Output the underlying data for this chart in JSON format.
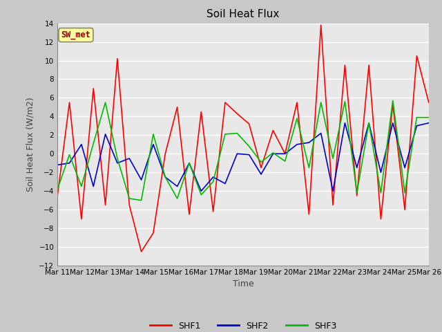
{
  "title": "Soil Heat Flux",
  "ylabel": "Soil Heat Flux (W/m2)",
  "xlabel": "Time",
  "ylim": [
    -12,
    14
  ],
  "yticks": [
    -12,
    -10,
    -8,
    -6,
    -4,
    -2,
    0,
    2,
    4,
    6,
    8,
    10,
    12,
    14
  ],
  "annotation_text": "SW_met",
  "annotation_color": "#8B0000",
  "annotation_bg": "#FFFFA0",
  "fig_bg_color": "#C8C8C8",
  "plot_bg": "#E8E8E8",
  "grid_color": "white",
  "x_labels": [
    "Mar 11",
    "Mar 12",
    "Mar 13",
    "Mar 14",
    "Mar 15",
    "Mar 16",
    "Mar 17",
    "Mar 18",
    "Mar 19",
    "Mar 20",
    "Mar 21",
    "Mar 22",
    "Mar 23",
    "Mar 24",
    "Mar 25",
    "Mar 26"
  ],
  "SHF1": [
    -4.5,
    5.5,
    -7.0,
    7.0,
    -5.5,
    10.2,
    -5.5,
    -10.5,
    -8.5,
    0.0,
    5.0,
    -6.5,
    4.5,
    -6.2,
    5.5,
    4.3,
    3.2,
    -1.5,
    2.5,
    0.0,
    5.5,
    -6.5,
    13.8,
    -5.5,
    9.5,
    -4.5,
    9.5,
    -7.0,
    5.3,
    -6.0,
    10.5,
    5.5
  ],
  "SHF2": [
    -1.2,
    -1.0,
    1.0,
    -3.5,
    2.1,
    -1.0,
    -0.5,
    -2.8,
    1.0,
    -2.5,
    -3.5,
    -1.0,
    -4.0,
    -2.5,
    -3.2,
    0.0,
    -0.1,
    -2.2,
    0.0,
    0.0,
    1.0,
    1.2,
    2.2,
    -4.0,
    3.3,
    -1.5,
    3.3,
    -2.0,
    3.3,
    -1.5,
    3.0,
    3.3
  ],
  "SHF3": [
    -3.8,
    -0.1,
    -3.5,
    1.1,
    5.5,
    -0.5,
    -4.8,
    -5.0,
    2.1,
    -2.5,
    -4.8,
    -1.0,
    -4.4,
    -3.0,
    2.1,
    2.2,
    0.8,
    -0.9,
    0.1,
    -0.8,
    3.8,
    -1.5,
    5.5,
    -0.5,
    5.6,
    -4.2,
    3.3,
    -4.2,
    5.7,
    -4.2,
    3.9,
    3.9
  ],
  "SHF1_color": "#FF0000",
  "SHF2_color": "#0000CC",
  "SHF3_color": "#00BB00",
  "line_width": 1.2,
  "title_fontsize": 11,
  "axis_label_fontsize": 9,
  "tick_fontsize": 7.5,
  "legend_fontsize": 9
}
